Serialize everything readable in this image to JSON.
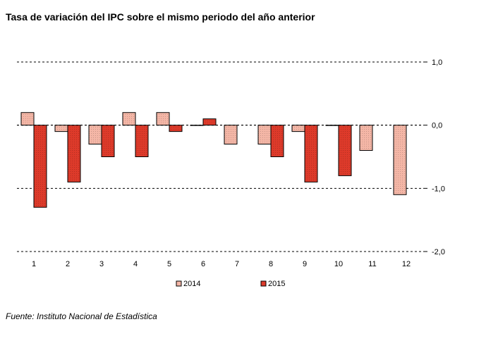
{
  "chart_data": {
    "type": "bar",
    "title": "Tasa de variación del IPC sobre el mismo periodo del año anterior",
    "categories": [
      "1",
      "2",
      "3",
      "4",
      "5",
      "6",
      "7",
      "8",
      "9",
      "10",
      "11",
      "12"
    ],
    "series": [
      {
        "name": "2014",
        "color": "#f4b6a6",
        "values": [
          0.2,
          -0.1,
          -0.3,
          0.2,
          0.2,
          0.0,
          -0.3,
          -0.3,
          -0.1,
          0.0,
          -0.4,
          -1.1
        ]
      },
      {
        "name": "2015",
        "color": "#dd3a2a",
        "values": [
          -1.3,
          -0.9,
          -0.5,
          -0.5,
          -0.1,
          0.1,
          null,
          -0.5,
          -0.9,
          -0.8,
          null,
          null
        ]
      }
    ],
    "yticks": [
      1.0,
      0.0,
      -1.0,
      -2.0
    ],
    "ytick_labels": [
      "1,0",
      "0,0",
      "-1,0",
      "-2,0"
    ],
    "ylim": [
      -2.0,
      1.0
    ],
    "grid": "dashed horizontal",
    "axis_side": "right",
    "legend_position": "bottom-center"
  },
  "source": "Fuente: Instituto Nacional de Estadística"
}
